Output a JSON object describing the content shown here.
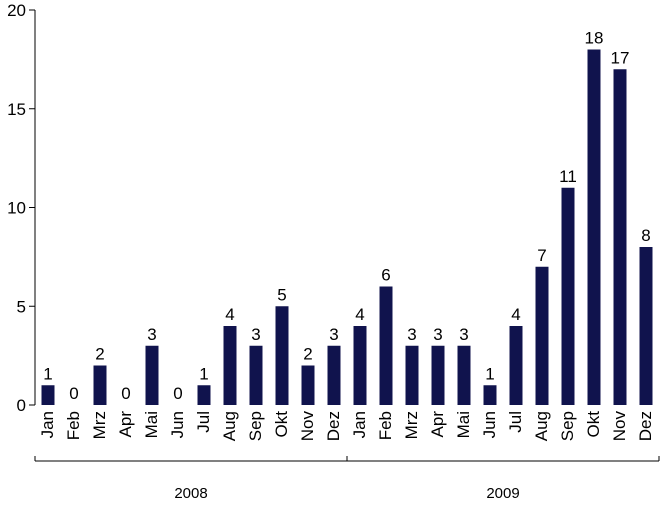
{
  "chart_data": {
    "type": "bar",
    "categories": [
      "Jan",
      "Feb",
      "Mrz",
      "Apr",
      "Mai",
      "Jun",
      "Jul",
      "Aug",
      "Sep",
      "Okt",
      "Nov",
      "Dez",
      "Jan",
      "Feb",
      "Mrz",
      "Apr",
      "Mai",
      "Jun",
      "Jul",
      "Aug",
      "Sep",
      "Okt",
      "Nov",
      "Dez"
    ],
    "values": [
      1,
      0,
      2,
      0,
      3,
      0,
      1,
      4,
      3,
      5,
      2,
      3,
      4,
      6,
      3,
      3,
      3,
      1,
      4,
      7,
      11,
      18,
      17,
      8
    ],
    "data_labels": [
      "1",
      "0",
      "2",
      "0",
      "3",
      "0",
      "1",
      "4",
      "3",
      "5",
      "2",
      "3",
      "4",
      "6",
      "3",
      "3",
      "3",
      "1",
      "4",
      "7",
      "11",
      "18",
      "17",
      "8"
    ],
    "groups": [
      {
        "label": "2008",
        "start": 0,
        "end": 11
      },
      {
        "label": "2009",
        "start": 12,
        "end": 23
      }
    ],
    "ylim": [
      0,
      20
    ],
    "yticks": [
      0,
      5,
      10,
      15,
      20
    ],
    "ytick_labels": [
      "0",
      "5",
      "10",
      "15",
      "20"
    ],
    "bar_color": "#10134d",
    "grid": false,
    "title": "",
    "xlabel": "",
    "ylabel": ""
  }
}
